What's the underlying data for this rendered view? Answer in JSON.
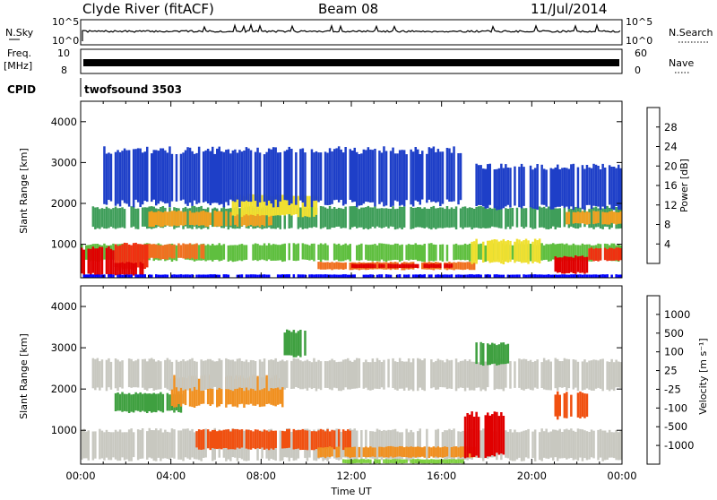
{
  "header": {
    "station": "Clyde River (fitACF)",
    "beam": "Beam 08",
    "date": "11/Jul/2014"
  },
  "info_panels": {
    "nsky_label": "N.Sky",
    "nsky_ticks": [
      "10^5",
      "10^0"
    ],
    "nsearch_label": "N.Search",
    "nsearch_ticks": [
      "10^5",
      "10^0"
    ],
    "freq_label_line1": "Freq.",
    "freq_label_line2": "[MHz]",
    "freq_ticks": [
      "10",
      "8"
    ],
    "nave_label": "Nave",
    "nave_ticks": [
      "60",
      "0"
    ],
    "cpid_label": "CPID",
    "cpid_value": "twofsound 3503"
  },
  "chart_data": [
    {
      "type": "heatmap",
      "quantity": "power",
      "xlabel": "",
      "ylabel": "Slant Range [km]",
      "xlim": [
        0,
        24
      ],
      "ylim": [
        180,
        4500
      ],
      "yticks": [
        "1000",
        "2000",
        "3000",
        "4000"
      ],
      "colorbar": {
        "label": "Power [dB]",
        "ticks": [
          "28",
          "24",
          "20",
          "16",
          "12",
          "8",
          "4"
        ],
        "colors": [
          "#0000ff",
          "#1e3fc8",
          "#3a6a8a",
          "#3f9e5a",
          "#5fbf3f",
          "#f0e030",
          "#f0a020",
          "#f07020",
          "#f03010",
          "#e00000"
        ]
      },
      "regions": [
        {
          "x": [
            0.0,
            24.0
          ],
          "y": [
            600,
            1000
          ],
          "level": 4
        },
        {
          "x": [
            0.0,
            1.5
          ],
          "y": [
            250,
            900
          ],
          "level": 9
        },
        {
          "x": [
            1.5,
            3.0
          ],
          "y": [
            400,
            1000
          ],
          "level": 8
        },
        {
          "x": [
            1.5,
            2.8
          ],
          "y": [
            250,
            550
          ],
          "level": 9
        },
        {
          "x": [
            3.0,
            5.5
          ],
          "y": [
            650,
            1000
          ],
          "level": 7
        },
        {
          "x": [
            0.5,
            24.0
          ],
          "y": [
            1400,
            1900
          ],
          "level": 3
        },
        {
          "x": [
            3.0,
            8.5
          ],
          "y": [
            1450,
            1800
          ],
          "level": 6
        },
        {
          "x": [
            6.5,
            10.5
          ],
          "y": [
            1700,
            2200
          ],
          "level": 5
        },
        {
          "x": [
            1.0,
            17.0
          ],
          "y": [
            2000,
            3300
          ],
          "level": 1
        },
        {
          "x": [
            17.5,
            24.0
          ],
          "y": [
            1900,
            2900
          ],
          "level": 1
        },
        {
          "x": [
            10.5,
            17.5
          ],
          "y": [
            380,
            560
          ],
          "level": 7
        },
        {
          "x": [
            12.0,
            16.5
          ],
          "y": [
            420,
            520
          ],
          "level": 9
        },
        {
          "x": [
            17.0,
            20.5
          ],
          "y": [
            550,
            1100
          ],
          "level": 5
        },
        {
          "x": [
            21.0,
            22.5
          ],
          "y": [
            300,
            700
          ],
          "level": 9
        },
        {
          "x": [
            21.5,
            24.0
          ],
          "y": [
            1500,
            1800
          ],
          "level": 6
        },
        {
          "x": [
            22.5,
            24.0
          ],
          "y": [
            600,
            900
          ],
          "level": 8
        },
        {
          "x": [
            0.0,
            24.0
          ],
          "y": [
            180,
            260
          ],
          "level": 0
        }
      ]
    },
    {
      "type": "heatmap",
      "quantity": "velocity",
      "xlabel": "Time UT",
      "ylabel": "Slant Range [km]",
      "xlim": [
        0,
        24
      ],
      "ylim": [
        180,
        4500
      ],
      "xticks": [
        "00:00",
        "04:00",
        "08:00",
        "12:00",
        "16:00",
        "20:00",
        "00:00"
      ],
      "yticks": [
        "1000",
        "2000",
        "3000",
        "4000"
      ],
      "colorbar": {
        "label": "Velocity [m s⁻¹]",
        "ticks": [
          "1000",
          "500",
          "100",
          "25",
          "-25",
          "-100",
          "-500",
          "-1000"
        ],
        "colors": [
          "#e00000",
          "#f05010",
          "#f09020",
          "#f0b040",
          "#c8c8c0",
          "#7fd040",
          "#3fa040",
          "#2a6a6a",
          "#1a3fa0"
        ]
      },
      "regions": [
        {
          "x": [
            0.0,
            24.0
          ],
          "y": [
            300,
            1000
          ],
          "level": 4
        },
        {
          "x": [
            1.5,
            4.5
          ],
          "y": [
            1450,
            1900
          ],
          "level": 6
        },
        {
          "x": [
            4.0,
            9.0
          ],
          "y": [
            1600,
            2300
          ],
          "level": 2
        },
        {
          "x": [
            0.5,
            24.0
          ],
          "y": [
            2000,
            2700
          ],
          "level": 4
        },
        {
          "x": [
            5.0,
            12.0
          ],
          "y": [
            550,
            1000
          ],
          "level": 1
        },
        {
          "x": [
            10.5,
            17.5
          ],
          "y": [
            350,
            600
          ],
          "level": 2
        },
        {
          "x": [
            11.5,
            17.0
          ],
          "y": [
            200,
            300
          ],
          "level": 5
        },
        {
          "x": [
            17.0,
            18.8
          ],
          "y": [
            400,
            1400
          ],
          "level": 0
        },
        {
          "x": [
            21.0,
            22.5
          ],
          "y": [
            1300,
            1900
          ],
          "level": 1
        },
        {
          "x": [
            9.0,
            10.0
          ],
          "y": [
            2800,
            3400
          ],
          "level": 6
        },
        {
          "x": [
            17.5,
            19.0
          ],
          "y": [
            2600,
            3100
          ],
          "level": 6
        }
      ]
    }
  ]
}
